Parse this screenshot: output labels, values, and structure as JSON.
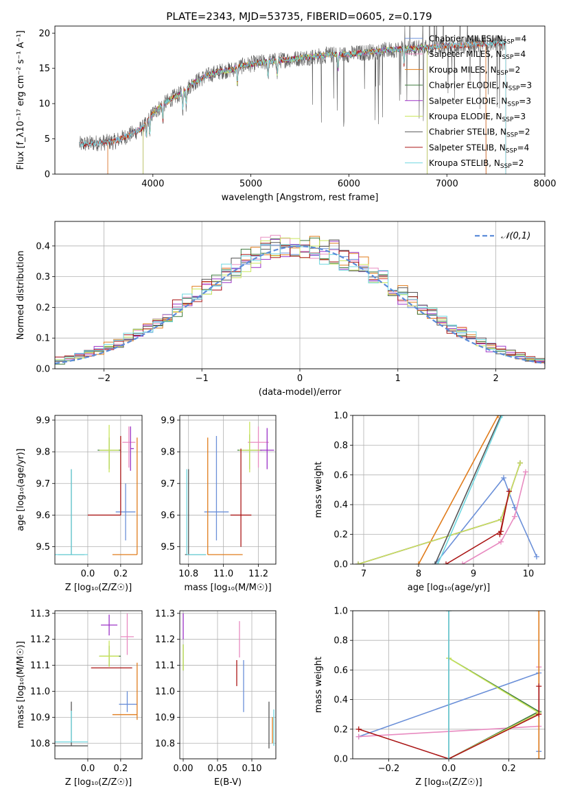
{
  "title": "PLATE=2343, MJD=53735, FIBERID=0605, z=0.179",
  "palette": {
    "Chabrier MILES": "#6a8fd8",
    "Salpeter MILES": "#e88ac0",
    "Kroupa MILES": "#e07b1a",
    "Chabrier ELODIE": "#3e7a3e",
    "Salpeter ELODIE": "#9b30c6",
    "Kroupa ELODIE": "#c9e55a",
    "Chabrier STELIB": "#555555",
    "Salpeter STELIB": "#aa1515",
    "Kroupa STELIB": "#6fd7e0",
    "normal": "#5b8bd9"
  },
  "chart_data": [
    {
      "id": "spectrum",
      "type": "line",
      "xlabel": "wavelength [Angstrom, rest frame]",
      "ylabel": "Flux [f_λ10⁻¹⁷ erg cm⁻² s⁻¹ A⁻¹]",
      "xlim": [
        3000,
        8000
      ],
      "ylim": [
        0,
        21
      ],
      "xticks": [
        4000,
        5000,
        6000,
        7000,
        8000
      ],
      "yticks": [
        0,
        5,
        10,
        15,
        20
      ],
      "grid": false,
      "legend_position": "right",
      "legend": [
        {
          "name": "Chabrier MILES",
          "nssp": "4"
        },
        {
          "name": "Salpeter MILES",
          "nssp": "4"
        },
        {
          "name": "Kroupa MILES",
          "nssp": "2"
        },
        {
          "name": "Chabrier ELODIE",
          "nssp": "3"
        },
        {
          "name": "Salpeter ELODIE",
          "nssp": "3"
        },
        {
          "name": "Kroupa ELODIE",
          "nssp": "3"
        },
        {
          "name": "Chabrier STELIB",
          "nssp": "2"
        },
        {
          "name": "Salpeter STELIB",
          "nssp": "4"
        },
        {
          "name": "Kroupa STELIB",
          "nssp": "2"
        }
      ],
      "observed_continuum": {
        "x": [
          3250,
          3400,
          3600,
          3700,
          3800,
          3900,
          4000,
          4100,
          4200,
          4300,
          4400,
          4500,
          4600,
          4700,
          4800,
          4900,
          5000,
          5200,
          5400,
          5600,
          5800,
          6000,
          6200,
          6400,
          6600,
          6800,
          7000,
          7200,
          7400,
          7600
        ],
        "y": [
          4.2,
          4.4,
          4.6,
          5.2,
          5.8,
          6.6,
          8.6,
          9.8,
          10.8,
          11.5,
          12.8,
          13.6,
          14.2,
          14.6,
          14.8,
          15.3,
          15.6,
          16.0,
          16.3,
          16.6,
          16.9,
          17.0,
          17.3,
          17.6,
          17.8,
          18.0,
          18.2,
          18.3,
          18.5,
          18.6
        ]
      },
      "model_ranges": {
        "Chabrier MILES": [
          3540,
          7400
        ],
        "Salpeter MILES": [
          3540,
          7400
        ],
        "Kroupa MILES": [
          3540,
          7400
        ],
        "Chabrier ELODIE": [
          3900,
          6800
        ],
        "Salpeter ELODIE": [
          3900,
          6800
        ],
        "Kroupa ELODIE": [
          3900,
          6800
        ],
        "Chabrier STELIB": [
          3250,
          7600
        ],
        "Salpeter STELIB": [
          3250,
          7600
        ],
        "Kroupa STELIB": [
          3250,
          7600
        ]
      }
    },
    {
      "id": "residuals",
      "type": "histogram",
      "xlabel": "(data-model)/error",
      "ylabel": "Normed distribution",
      "xlim": [
        -2.5,
        2.5
      ],
      "ylim": [
        0,
        0.48
      ],
      "xticks": [
        -2,
        -1,
        0,
        1,
        2
      ],
      "yticks": [
        0.0,
        0.1,
        0.2,
        0.3,
        0.4
      ],
      "grid": true,
      "legend_position": "top-right",
      "legend": [
        {
          "name": "𝒩(0,1)"
        }
      ],
      "bin_width": 0.1
    },
    {
      "id": "age_vs_Z",
      "type": "errorbar",
      "xlabel": "Z [log₁₀(Z/Z☉)]",
      "ylabel": "age  [log₁₀(age/yr)]",
      "xlim": [
        -0.2,
        0.33
      ],
      "ylim": [
        9.445,
        9.915
      ],
      "xticks": [
        0.0,
        0.2
      ],
      "yticks": [
        9.5,
        9.6,
        9.7,
        9.8,
        9.9
      ],
      "grid": true,
      "points": [
        {
          "model": "Chabrier MILES",
          "x": 0.23,
          "xerr": [
            0.06,
            0.06
          ],
          "y": 9.61,
          "yerr": [
            0.09,
            0.09
          ]
        },
        {
          "model": "Salpeter MILES",
          "x": 0.25,
          "xerr": [
            0.04,
            0.04
          ],
          "y": 9.83,
          "yerr": [
            0.08,
            0.05
          ]
        },
        {
          "model": "Kroupa MILES",
          "x": 0.3,
          "xerr": [
            0.15,
            0.0
          ],
          "y": 9.475,
          "yerr": [
            0.0,
            0.37
          ]
        },
        {
          "model": "Chabrier ELODIE",
          "x": 0.13,
          "xerr": [
            0.07,
            0.07
          ],
          "y": 9.805,
          "yerr": [
            0.06,
            0.04
          ]
        },
        {
          "model": "Salpeter ELODIE",
          "x": 0.26,
          "xerr": [
            0.0,
            0.02
          ],
          "y": 9.81,
          "yerr": [
            0.07,
            0.07
          ]
        },
        {
          "model": "Kroupa ELODIE",
          "x": 0.13,
          "xerr": [
            0.06,
            0.06
          ],
          "y": 9.805,
          "yerr": [
            0.07,
            0.08
          ]
        },
        {
          "model": "Chabrier STELIB",
          "x": -0.1,
          "xerr": [
            0.08,
            0.08
          ],
          "y": 9.475,
          "yerr": [
            0.0,
            0.27
          ]
        },
        {
          "model": "Salpeter STELIB",
          "x": 0.2,
          "xerr": [
            0.2,
            0.0
          ],
          "y": 9.6,
          "yerr": [
            0.0,
            0.25
          ]
        },
        {
          "model": "Kroupa STELIB",
          "x": -0.1,
          "xerr": [
            0.1,
            0.1
          ],
          "y": 9.475,
          "yerr": [
            0.0,
            0.27
          ]
        }
      ]
    },
    {
      "id": "age_vs_mass",
      "type": "errorbar",
      "xlabel": "mass [log₁₀(M/M☉)]",
      "ylabel": "",
      "xlim": [
        10.75,
        11.3
      ],
      "ylim": [
        9.445,
        9.915
      ],
      "xticks": [
        10.8,
        11.0,
        11.2
      ],
      "yticks": [
        9.5,
        9.6,
        9.7,
        9.8,
        9.9
      ],
      "grid": true,
      "points": [
        {
          "model": "Chabrier MILES",
          "x": 10.96,
          "xerr": [
            0.07,
            0.07
          ],
          "y": 9.61,
          "yerr": [
            0.09,
            0.24
          ]
        },
        {
          "model": "Salpeter MILES",
          "x": 11.2,
          "xerr": [
            0.06,
            0.06
          ],
          "y": 9.83,
          "yerr": [
            0.08,
            0.05
          ]
        },
        {
          "model": "Kroupa MILES",
          "x": 10.91,
          "xerr": [
            0.0,
            0.2
          ],
          "y": 9.475,
          "yerr": [
            0.0,
            0.37
          ]
        },
        {
          "model": "Chabrier ELODIE",
          "x": 11.15,
          "xerr": [
            0.07,
            0.07
          ],
          "y": 9.805,
          "yerr": [
            0.06,
            0.05
          ]
        },
        {
          "model": "Salpeter ELODIE",
          "x": 11.25,
          "xerr": [
            0.06,
            0.04
          ],
          "y": 9.805,
          "yerr": [
            0.06,
            0.07
          ]
        },
        {
          "model": "Kroupa ELODIE",
          "x": 11.15,
          "xerr": [
            0.06,
            0.06
          ],
          "y": 9.805,
          "yerr": [
            0.07,
            0.09
          ]
        },
        {
          "model": "Chabrier STELIB",
          "x": 10.8,
          "xerr": [
            0.02,
            0.1
          ],
          "y": 9.475,
          "yerr": [
            0.0,
            0.27
          ]
        },
        {
          "model": "Salpeter STELIB",
          "x": 11.1,
          "xerr": [
            0.06,
            0.06
          ],
          "y": 9.6,
          "yerr": [
            0.1,
            0.21
          ]
        },
        {
          "model": "Kroupa STELIB",
          "x": 10.79,
          "xerr": [
            0.0,
            0.11
          ],
          "y": 9.475,
          "yerr": [
            0.0,
            0.27
          ]
        }
      ]
    },
    {
      "id": "weight_vs_age",
      "type": "line",
      "xlabel": "age  [log₁₀(age/yr)]",
      "ylabel": "mass weight",
      "xlim": [
        6.8,
        10.3
      ],
      "ylim": [
        0,
        1.0
      ],
      "xticks": [
        7,
        8,
        9,
        10
      ],
      "yticks": [
        0.0,
        0.2,
        0.4,
        0.6,
        0.8,
        1.0
      ],
      "grid": true,
      "series": [
        {
          "model": "Chabrier MILES",
          "x": [
            8.3,
            9.55,
            9.75,
            10.15
          ],
          "y": [
            0.0,
            0.58,
            0.38,
            0.05
          ]
        },
        {
          "model": "Salpeter MILES",
          "x": [
            8.8,
            9.5,
            9.75,
            9.95
          ],
          "y": [
            0.0,
            0.15,
            0.32,
            0.62
          ]
        },
        {
          "model": "Kroupa MILES",
          "x": [
            8.0,
            9.45
          ],
          "y": [
            0.0,
            1.0
          ]
        },
        {
          "model": "Chabrier ELODIE",
          "x": [
            6.9,
            9.5,
            9.85
          ],
          "y": [
            0.0,
            0.3,
            0.68
          ]
        },
        {
          "model": "Salpeter ELODIE",
          "x": [
            6.9,
            9.5,
            9.85
          ],
          "y": [
            0.0,
            0.3,
            0.68
          ]
        },
        {
          "model": "Kroupa ELODIE",
          "x": [
            6.9,
            9.5,
            9.85
          ],
          "y": [
            0.0,
            0.3,
            0.68
          ]
        },
        {
          "model": "Chabrier STELIB",
          "x": [
            8.3,
            9.5
          ],
          "y": [
            0.0,
            1.0
          ]
        },
        {
          "model": "Salpeter STELIB",
          "x": [
            8.5,
            9.5,
            9.65,
            9.48
          ],
          "y": [
            0.0,
            0.22,
            0.49,
            0.2
          ]
        },
        {
          "model": "Kroupa STELIB",
          "x": [
            8.35,
            9.52
          ],
          "y": [
            0.0,
            1.0
          ]
        }
      ]
    },
    {
      "id": "mass_vs_Z",
      "type": "errorbar",
      "xlabel": "Z [log₁₀(Z/Z☉)]",
      "ylabel": "mass [log₁₀(M/M☉)]",
      "xlim": [
        -0.2,
        0.33
      ],
      "ylim": [
        10.74,
        11.31
      ],
      "xticks": [
        0.0,
        0.2
      ],
      "yticks": [
        10.8,
        10.9,
        11.0,
        11.1,
        11.2,
        11.3
      ],
      "grid": true,
      "points": [
        {
          "model": "Chabrier MILES",
          "x": 0.24,
          "xerr": [
            0.05,
            0.06
          ],
          "y": 10.95,
          "yerr": [
            0.03,
            0.05
          ]
        },
        {
          "model": "Salpeter MILES",
          "x": 0.24,
          "xerr": [
            0.04,
            0.04
          ],
          "y": 11.21,
          "yerr": [
            0.07,
            0.09
          ]
        },
        {
          "model": "Kroupa MILES",
          "x": 0.3,
          "xerr": [
            0.15,
            0.0
          ],
          "y": 10.91,
          "yerr": [
            0.02,
            0.2
          ]
        },
        {
          "model": "Chabrier ELODIE",
          "x": 0.13,
          "xerr": [
            0.06,
            0.07
          ],
          "y": 11.135,
          "yerr": [
            0.04,
            0.04
          ]
        },
        {
          "model": "Salpeter ELODIE",
          "x": 0.13,
          "xerr": [
            0.05,
            0.05
          ],
          "y": 11.255,
          "yerr": [
            0.04,
            0.04
          ]
        },
        {
          "model": "Kroupa ELODIE",
          "x": 0.13,
          "xerr": [
            0.06,
            0.06
          ],
          "y": 11.135,
          "yerr": [
            0.04,
            0.06
          ]
        },
        {
          "model": "Chabrier STELIB",
          "x": -0.1,
          "xerr": [
            0.1,
            0.1
          ],
          "y": 10.79,
          "yerr": [
            0.0,
            0.17
          ]
        },
        {
          "model": "Salpeter STELIB",
          "x": 0.02,
          "xerr": [
            0.0,
            0.25
          ],
          "y": 11.09,
          "yerr": [
            0.0,
            0.0
          ]
        },
        {
          "model": "Kroupa STELIB",
          "x": -0.1,
          "xerr": [
            0.1,
            0.1
          ],
          "y": 10.805,
          "yerr": [
            0.0,
            0.12
          ]
        }
      ]
    },
    {
      "id": "mass_vs_ebv",
      "type": "errorbar",
      "xlabel": "E(B-V)",
      "ylabel": "",
      "xlim": [
        -0.005,
        0.135
      ],
      "ylim": [
        10.74,
        11.31
      ],
      "xticks": [
        0.0,
        0.05,
        0.1
      ],
      "tick_labels": [
        "0.00",
        "0.05",
        "0.10"
      ],
      "yticks": [
        10.8,
        10.9,
        11.0,
        11.1,
        11.2,
        11.3
      ],
      "grid": true,
      "points": [
        {
          "model": "Chabrier MILES",
          "x": 0.088,
          "xerr": [
            0,
            0
          ],
          "y": 11.02,
          "yerr": [
            0.1,
            0.1
          ]
        },
        {
          "model": "Salpeter MILES",
          "x": 0.082,
          "xerr": [
            0,
            0
          ],
          "y": 11.2,
          "yerr": [
            0.07,
            0.07
          ]
        },
        {
          "model": "Kroupa MILES",
          "x": 0.13,
          "xerr": [
            0,
            0
          ],
          "y": 10.85,
          "yerr": [
            0.05,
            0.05
          ]
        },
        {
          "model": "Chabrier ELODIE",
          "x": 0.0,
          "xerr": [
            0,
            0
          ],
          "y": 11.13,
          "yerr": [
            0.05,
            0.05
          ]
        },
        {
          "model": "Salpeter ELODIE",
          "x": 0.0,
          "xerr": [
            0,
            0
          ],
          "y": 11.25,
          "yerr": [
            0.05,
            0.05
          ]
        },
        {
          "model": "Kroupa ELODIE",
          "x": 0.0,
          "xerr": [
            0,
            0
          ],
          "y": 11.13,
          "yerr": [
            0.05,
            0.05
          ]
        },
        {
          "model": "Chabrier STELIB",
          "x": 0.125,
          "xerr": [
            0,
            0
          ],
          "y": 10.87,
          "yerr": [
            0.09,
            0.09
          ]
        },
        {
          "model": "Salpeter STELIB",
          "x": 0.078,
          "xerr": [
            0,
            0
          ],
          "y": 11.07,
          "yerr": [
            0.05,
            0.05
          ]
        },
        {
          "model": "Kroupa STELIB",
          "x": 0.132,
          "xerr": [
            0,
            0
          ],
          "y": 10.86,
          "yerr": [
            0.07,
            0.07
          ]
        }
      ]
    },
    {
      "id": "weight_vs_Z",
      "type": "line",
      "xlabel": "Z [log₁₀(Z/Z☉)]",
      "ylabel": "mass weight",
      "xlim": [
        -0.32,
        0.32
      ],
      "ylim": [
        0,
        1.0
      ],
      "xticks": [
        -0.2,
        0.0,
        0.2
      ],
      "yticks": [
        0.0,
        0.2,
        0.4,
        0.6,
        0.8,
        1.0
      ],
      "grid": true,
      "series": [
        {
          "model": "Chabrier MILES",
          "x": [
            -0.3,
            0.3,
            0.3
          ],
          "y": [
            0.15,
            0.58,
            0.05
          ]
        },
        {
          "model": "Salpeter MILES",
          "x": [
            -0.3,
            0.3,
            0.3
          ],
          "y": [
            0.15,
            0.22,
            0.62
          ]
        },
        {
          "model": "Kroupa MILES",
          "x": [
            0.3,
            0.3
          ],
          "y": [
            0.0,
            1.0
          ]
        },
        {
          "model": "Chabrier ELODIE",
          "x": [
            0.0,
            0.3,
            0.0
          ],
          "y": [
            0.0,
            0.32,
            0.68
          ]
        },
        {
          "model": "Salpeter ELODIE",
          "x": [
            0.0,
            0.3
          ],
          "y": [
            0.0,
            0.31
          ]
        },
        {
          "model": "Kroupa ELODIE",
          "x": [
            0.0,
            0.3,
            0.0
          ],
          "y": [
            0.0,
            0.31,
            0.68
          ]
        },
        {
          "model": "Chabrier STELIB",
          "x": [
            0.0,
            0.0
          ],
          "y": [
            0.0,
            1.0
          ]
        },
        {
          "model": "Salpeter STELIB",
          "x": [
            -0.3,
            0.0,
            0.3,
            0.3
          ],
          "y": [
            0.2,
            0.0,
            0.3,
            0.49
          ]
        },
        {
          "model": "Kroupa STELIB",
          "x": [
            0.0,
            0.0
          ],
          "y": [
            0.0,
            1.0
          ]
        }
      ]
    }
  ]
}
